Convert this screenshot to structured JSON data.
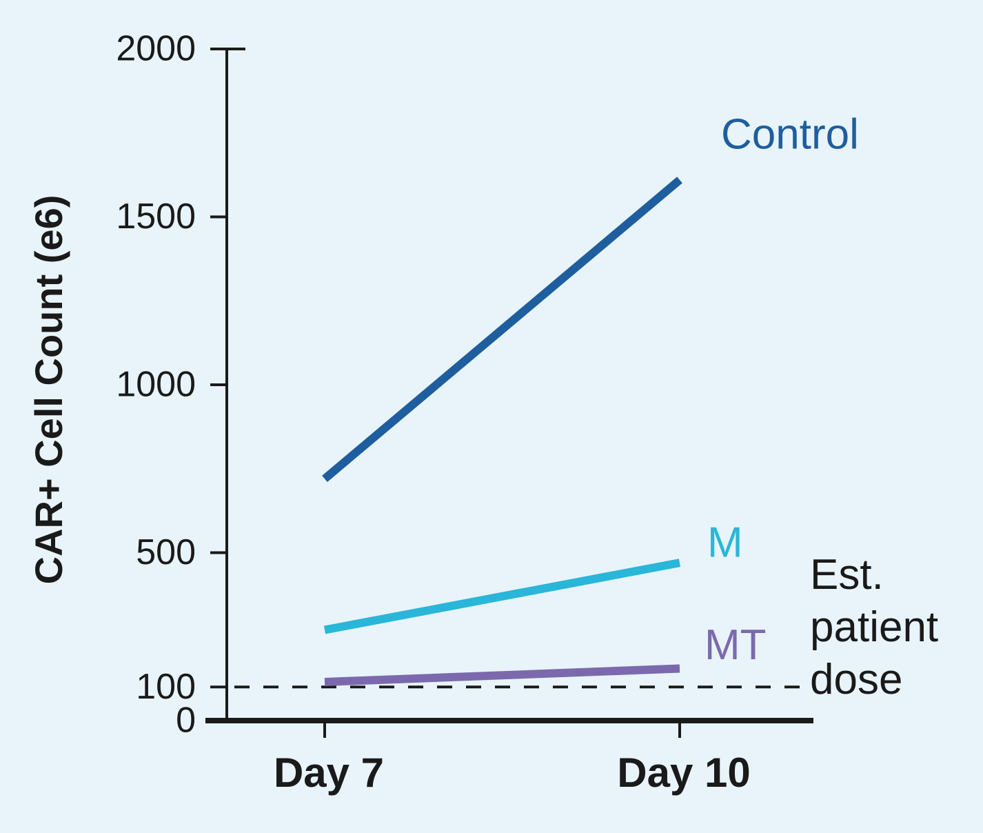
{
  "chart_data": {
    "type": "line",
    "ylabel": "CAR+ Cell Count (e6)",
    "categories": [
      "Day 7",
      "Day 10"
    ],
    "series": [
      {
        "name": "Control",
        "color": "#1f5e9e",
        "values": [
          720,
          1610
        ]
      },
      {
        "name": "M",
        "color": "#29b6d8",
        "values": [
          270,
          470
        ]
      },
      {
        "name": "MT",
        "color": "#7c69ad",
        "values": [
          115,
          155
        ]
      }
    ],
    "ylim": [
      0,
      2000
    ],
    "yticks": [
      0,
      100,
      500,
      1000,
      1500,
      2000
    ],
    "reference_line": {
      "value": 100,
      "label": "Est. patient dose",
      "style": "dashed"
    },
    "grid": false
  }
}
